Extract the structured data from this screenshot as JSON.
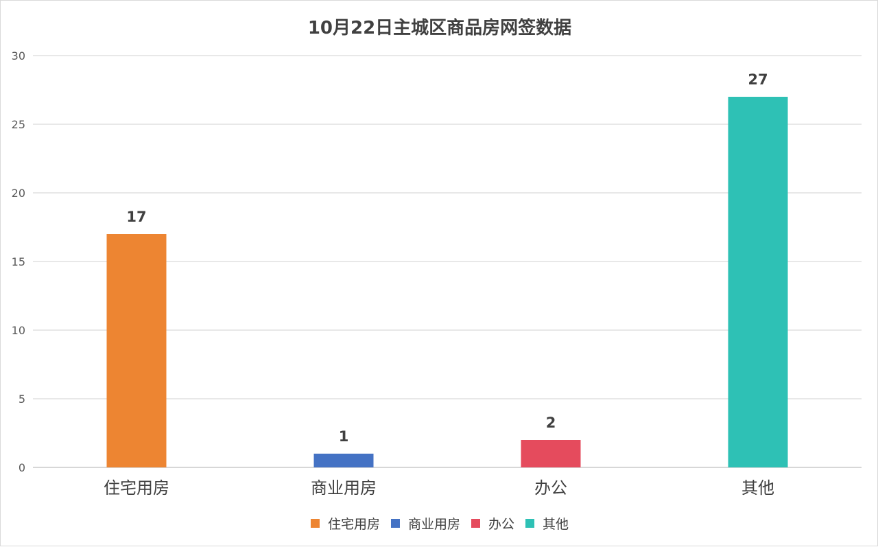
{
  "chart_data": {
    "type": "bar",
    "title": "10月22日主城区商品房网签数据",
    "categories": [
      "住宅用房",
      "商业用房",
      "办公",
      "其他"
    ],
    "values": [
      17,
      1,
      2,
      27
    ],
    "colors": [
      "#ed8532",
      "#4472c4",
      "#e54b5d",
      "#2ec1b5"
    ],
    "ylim": [
      0,
      30
    ],
    "yticks": [
      0,
      5,
      10,
      15,
      20,
      25,
      30
    ],
    "grid": true,
    "legend_position": "bottom",
    "data_labels": true
  }
}
